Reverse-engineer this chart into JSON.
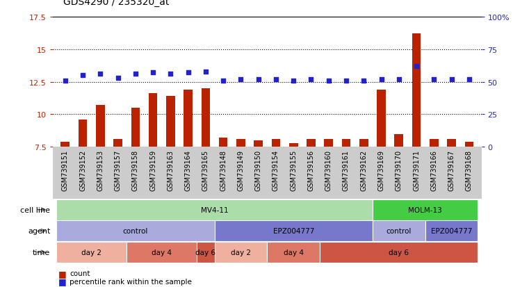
{
  "title": "GDS4290 / 235320_at",
  "samples": [
    "GSM739151",
    "GSM739152",
    "GSM739153",
    "GSM739157",
    "GSM739158",
    "GSM739159",
    "GSM739163",
    "GSM739164",
    "GSM739165",
    "GSM739148",
    "GSM739149",
    "GSM739150",
    "GSM739154",
    "GSM739155",
    "GSM739156",
    "GSM739160",
    "GSM739161",
    "GSM739162",
    "GSM739169",
    "GSM739170",
    "GSM739171",
    "GSM739166",
    "GSM739167",
    "GSM739168"
  ],
  "count_values": [
    7.9,
    9.6,
    10.7,
    8.1,
    10.5,
    11.6,
    11.4,
    11.9,
    12.0,
    8.2,
    8.1,
    8.0,
    8.1,
    7.8,
    8.1,
    8.1,
    8.1,
    8.1,
    11.9,
    8.5,
    16.2,
    8.1,
    8.1,
    7.9
  ],
  "percentile_values": [
    51,
    55,
    56,
    53,
    56,
    57,
    56,
    57,
    58,
    51,
    52,
    52,
    52,
    51,
    52,
    51,
    51,
    51,
    52,
    52,
    62,
    52,
    52,
    52
  ],
  "ylim_left": [
    7.5,
    17.5
  ],
  "ylim_right": [
    0,
    100
  ],
  "yticks_left": [
    7.5,
    10.0,
    12.5,
    15.0,
    17.5
  ],
  "yticks_right": [
    0,
    25,
    50,
    75,
    100
  ],
  "bar_color": "#bb2200",
  "dot_color": "#2222cc",
  "bg_color": "#ffffff",
  "xtick_bg": "#cccccc",
  "cell_line_data": [
    {
      "label": "MV4-11",
      "start": 0,
      "end": 18,
      "color": "#aaddaa"
    },
    {
      "label": "MOLM-13",
      "start": 18,
      "end": 24,
      "color": "#44cc44"
    }
  ],
  "agent_data": [
    {
      "label": "control",
      "start": 0,
      "end": 9,
      "color": "#aaaadd"
    },
    {
      "label": "EPZ004777",
      "start": 9,
      "end": 18,
      "color": "#7777cc"
    },
    {
      "label": "control",
      "start": 18,
      "end": 21,
      "color": "#aaaadd"
    },
    {
      "label": "EPZ004777",
      "start": 21,
      "end": 24,
      "color": "#7777cc"
    }
  ],
  "time_data": [
    {
      "label": "day 2",
      "start": 0,
      "end": 4,
      "color": "#f0b0a0"
    },
    {
      "label": "day 4",
      "start": 4,
      "end": 8,
      "color": "#dd7766"
    },
    {
      "label": "day 6",
      "start": 8,
      "end": 9,
      "color": "#cc5544"
    },
    {
      "label": "day 2",
      "start": 9,
      "end": 12,
      "color": "#f0b0a0"
    },
    {
      "label": "day 4",
      "start": 12,
      "end": 15,
      "color": "#dd7766"
    },
    {
      "label": "day 6",
      "start": 15,
      "end": 24,
      "color": "#cc5544"
    }
  ],
  "row_label_fontsize": 8,
  "tick_fontsize": 7,
  "title_fontsize": 10,
  "bar_width": 0.5
}
